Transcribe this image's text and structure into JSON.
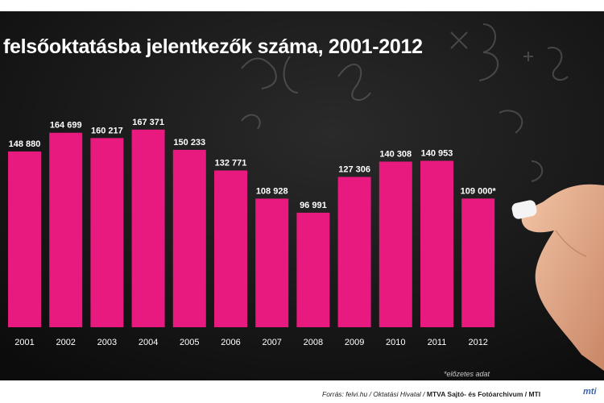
{
  "chart_data": {
    "type": "bar",
    "title": "felsőoktatásba jelentkezők száma, 2001-2012",
    "categories": [
      "2001",
      "2002",
      "2003",
      "2004",
      "2005",
      "2006",
      "2007",
      "2008",
      "2009",
      "2010",
      "2011",
      "2012"
    ],
    "values": [
      148880,
      164699,
      160217,
      167371,
      150233,
      132771,
      108928,
      96991,
      127306,
      140308,
      140953,
      109000
    ],
    "value_labels": [
      "148 880",
      "164 699",
      "160 217",
      "167 371",
      "150 233",
      "132 771",
      "108 928",
      "96 991",
      "127 306",
      "140 308",
      "140 953",
      "109 000*"
    ],
    "ylim": [
      0,
      185000
    ],
    "grid": false,
    "bar_color": "#e8197f",
    "background_color": "#141414",
    "label_color": "#ffffff"
  },
  "footnote": "*előzetes adat",
  "source": {
    "prefix": "Forrás: felvi.hu / Oktatási Hivatal / ",
    "bold": "MTVA Sajtó- és Fotóarchivum / MTI"
  },
  "logo_text": "mti"
}
